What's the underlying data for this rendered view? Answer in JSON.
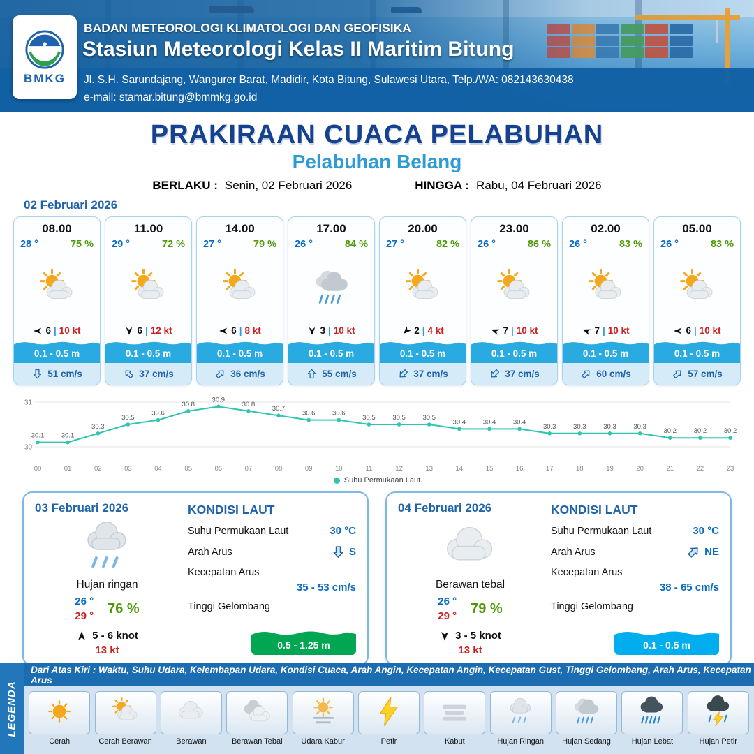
{
  "header": {
    "logo_text": "BMKG",
    "agency": "BADAN METEOROLOGI KLIMATOLOGI DAN GEOFISIKA",
    "station": "Stasiun Meteorologi Kelas II Maritim Bitung",
    "address": "Jl. S.H. Sarundajang, Wangurer Barat, Madidir, Kota Bitung, Sulawesi Utara, Telp./WA: 082143630438",
    "email": "e-mail: stamar.bitung@bmmkg.go.id"
  },
  "title": {
    "main": "PRAKIRAAN CUACA PELABUHAN",
    "subtitle": "Pelabuhan Belang",
    "berlaku_label": "BERLAKU :",
    "berlaku": "Senin, 02 Februari 2026",
    "hingga_label": "HINGGA :",
    "hingga": "Rabu, 04 Februari 2026"
  },
  "hourly": {
    "date": "02 Februari 2026",
    "separator": "|",
    "cards": [
      {
        "time": "08.00",
        "temp": "28 °",
        "rh": "75 %",
        "icon": "cerah-berawan",
        "wind": "6",
        "gust": "10 kt",
        "wind_rot": 270,
        "wave": "0.1 - 0.5 m",
        "current": "51 cm/s",
        "current_rot": 180
      },
      {
        "time": "11.00",
        "temp": "29 °",
        "rh": "72 %",
        "icon": "cerah-berawan",
        "wind": "6",
        "gust": "12 kt",
        "wind_rot": 180,
        "wave": "0.1 - 0.5 m",
        "current": "37 cm/s",
        "current_rot": 315
      },
      {
        "time": "14.00",
        "temp": "27 °",
        "rh": "79 %",
        "icon": "cerah-berawan",
        "wind": "6",
        "gust": "8 kt",
        "wind_rot": 270,
        "wave": "0.1 - 0.5 m",
        "current": "36 cm/s",
        "current_rot": 45
      },
      {
        "time": "17.00",
        "temp": "26 °",
        "rh": "84 %",
        "icon": "hujan-sedang",
        "wind": "3",
        "gust": "10 kt",
        "wind_rot": 180,
        "wave": "0.1 - 0.5 m",
        "current": "55 cm/s",
        "current_rot": 0
      },
      {
        "time": "20.00",
        "temp": "27 °",
        "rh": "82 %",
        "icon": "cerah-berawan",
        "wind": "2",
        "gust": "4 kt",
        "wind_rot": 225,
        "wave": "0.1 - 0.5 m",
        "current": "37 cm/s",
        "current_rot": 225
      },
      {
        "time": "23.00",
        "temp": "26 °",
        "rh": "86 %",
        "icon": "cerah-berawan",
        "wind": "7",
        "gust": "10 kt",
        "wind_rot": 290,
        "wave": "0.1 - 0.5 m",
        "current": "37 cm/s",
        "current_rot": 225
      },
      {
        "time": "02.00",
        "temp": "26 °",
        "rh": "83 %",
        "icon": "cerah-berawan",
        "wind": "7",
        "gust": "10 kt",
        "wind_rot": 290,
        "wave": "0.1 - 0.5 m",
        "current": "60 cm/s",
        "current_rot": 45
      },
      {
        "time": "05.00",
        "temp": "26 °",
        "rh": "83 %",
        "icon": "cerah-berawan",
        "wind": "6",
        "gust": "10 kt",
        "wind_rot": 270,
        "wave": "0.1 - 0.5 m",
        "current": "57 cm/s",
        "current_rot": 45
      }
    ]
  },
  "chart_data": {
    "type": "line",
    "title": "Suhu Permukaan Laut",
    "x": [
      "00",
      "01",
      "02",
      "03",
      "04",
      "05",
      "06",
      "07",
      "08",
      "09",
      "10",
      "11",
      "12",
      "13",
      "14",
      "15",
      "16",
      "17",
      "18",
      "19",
      "20",
      "21",
      "22",
      "23"
    ],
    "series": [
      {
        "name": "Suhu Permukaan Laut",
        "values": [
          30.1,
          30.1,
          30.3,
          30.5,
          30.6,
          30.8,
          30.9,
          30.8,
          30.7,
          30.6,
          30.6,
          30.5,
          30.5,
          30.5,
          30.4,
          30.4,
          30.4,
          30.3,
          30.3,
          30.3,
          30.3,
          30.2,
          30.2,
          30.2
        ]
      }
    ],
    "ylim": [
      30,
      31
    ],
    "yticks": [
      30,
      31
    ],
    "line_color": "#2fc5b1",
    "grid": true,
    "legend_position": "bottom"
  },
  "daily": {
    "labels": {
      "kondisi_laut": "KONDISI LAUT",
      "sst": "Suhu Permukaan Laut",
      "arah_arus": "Arah Arus",
      "kecepatan_arus": "Kecepatan Arus",
      "tinggi_gelombang": "Tinggi Gelombang"
    },
    "days": [
      {
        "date": "03 Februari 2026",
        "icon": "hujan-ringan",
        "condition": "Hujan ringan",
        "temp_min": "26 °",
        "temp_max": "29 °",
        "rh": "76 %",
        "wind": "5 - 6 knot",
        "wind_rot": 0,
        "gust": "13 kt",
        "sst": "30 °C",
        "current_dir": "S",
        "current_rot": 180,
        "current_speed": "35 - 53 cm/s",
        "wave": "0.5 - 1.25 m",
        "wave_color": "#00a651"
      },
      {
        "date": "04 Februari 2026",
        "icon": "berawan",
        "condition": "Berawan tebal",
        "temp_min": "26 °",
        "temp_max": "29 °",
        "rh": "79 %",
        "wind": "3  - 5 knot",
        "wind_rot": 180,
        "gust": "13 kt",
        "sst": "30 °C",
        "current_dir": "NE",
        "current_rot": 45,
        "current_speed": "38 - 65 cm/s",
        "wave": "0.1 - 0.5 m",
        "wave_color": "#00aeef"
      }
    ]
  },
  "legend": {
    "vertical_label": "LEGENDA",
    "caption": "Dari Atas Kiri : Waktu, Suhu Udara, Kelembapan Udara, Kondisi Cuaca, Arah Angin, Kecepatan Angin, Kecepatan Gust, Tinggi Gelombang, Arah Arus, Kecepatan Arus",
    "items": [
      {
        "label": "Cerah",
        "icon": "cerah"
      },
      {
        "label": "Cerah Berawan",
        "icon": "cerah-berawan"
      },
      {
        "label": "Berawan",
        "icon": "berawan"
      },
      {
        "label": "Berawan Tebal",
        "icon": "berawan-tebal"
      },
      {
        "label": "Udara Kabur",
        "icon": "udara-kabur"
      },
      {
        "label": "Petir",
        "icon": "petir"
      },
      {
        "label": "Kabut",
        "icon": "kabut"
      },
      {
        "label": "Hujan Ringan",
        "icon": "hujan-ringan"
      },
      {
        "label": "Hujan Sedang",
        "icon": "hujan-sedang"
      },
      {
        "label": "Hujan Lebat",
        "icon": "hujan-lebat"
      },
      {
        "label": "Hujan Petir",
        "icon": "hujan-petir"
      }
    ]
  },
  "colors": {
    "accent_blue": "#1f63ac",
    "temp_blue": "#0a6bc4",
    "rh_green": "#4e9a06",
    "gust_red": "#cc1f1f",
    "wave_blue": "#29abe2",
    "chart_teal": "#2fc5b1",
    "subtitle_blue": "#2e9bd6",
    "title_navy": "#15418f"
  }
}
